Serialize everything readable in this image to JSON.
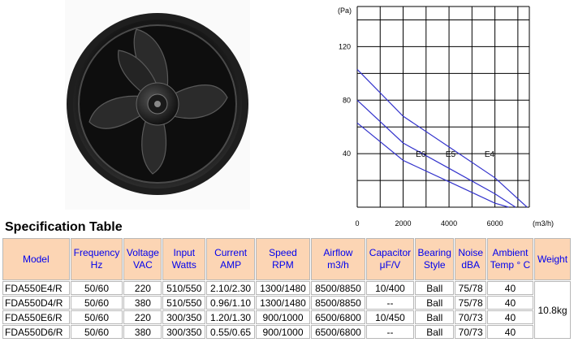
{
  "fan_image": {
    "alt_icon": "axial-fan-icon"
  },
  "fan_curve": {
    "y_unit": "(Pa)",
    "x_unit": "(m3/h)",
    "y_ticks": [
      {
        "label": "120",
        "value": 120
      },
      {
        "label": "80",
        "value": 80
      },
      {
        "label": "40",
        "value": 40
      }
    ],
    "x_ticks": [
      {
        "label": "0",
        "value": 0
      },
      {
        "label": "2000",
        "value": 2000
      },
      {
        "label": "4000",
        "value": 4000
      },
      {
        "label": "6000",
        "value": 6000
      }
    ],
    "xlim": [
      0,
      7500
    ],
    "ylim": [
      0,
      150
    ],
    "curves": [
      {
        "label": "E6",
        "points": [
          [
            0,
            63
          ],
          [
            2000,
            35
          ],
          [
            4000,
            19
          ],
          [
            6000,
            3
          ],
          [
            6600,
            0
          ]
        ]
      },
      {
        "label": "E5",
        "points": [
          [
            0,
            80
          ],
          [
            2000,
            48
          ],
          [
            4000,
            29
          ],
          [
            6000,
            10
          ],
          [
            6900,
            0
          ]
        ]
      },
      {
        "label": "E4",
        "points": [
          [
            0,
            103
          ],
          [
            2000,
            68
          ],
          [
            4000,
            45
          ],
          [
            6000,
            22
          ],
          [
            7400,
            0
          ]
        ]
      }
    ],
    "curve_labels": [
      {
        "text": "E6",
        "x": 2550,
        "y": 40
      },
      {
        "text": "E5",
        "x": 3850,
        "y": 40
      },
      {
        "text": "E4",
        "x": 5550,
        "y": 40
      }
    ],
    "line_color": "#3333cc",
    "grid": true
  },
  "spec": {
    "title": "Specification Table",
    "headers": [
      [
        "Model"
      ],
      [
        "Frequency",
        "Hz"
      ],
      [
        "Voltage",
        "VAC"
      ],
      [
        "Input",
        "Watts"
      ],
      [
        "Current",
        "AMP"
      ],
      [
        "Speed",
        "RPM"
      ],
      [
        "Airflow",
        "m3/h"
      ],
      [
        "Capacitor",
        "μF/V"
      ],
      [
        "Bearing",
        "Style"
      ],
      [
        "Noise",
        "dBA"
      ],
      [
        "Ambient",
        "Temp ° C"
      ],
      [
        "Weight"
      ]
    ],
    "rows": [
      [
        "FDA550E4/R",
        "50/60",
        "220",
        "510/550",
        "2.10/2.30",
        "1300/1480",
        "8500/8850",
        "10/400",
        "Ball",
        "75/78",
        "40"
      ],
      [
        "FDA550D4/R",
        "50/60",
        "380",
        "510/550",
        "0.96/1.10",
        "1300/1480",
        "8500/8850",
        "--",
        "Ball",
        "75/78",
        "40"
      ],
      [
        "FDA550E6/R",
        "50/60",
        "220",
        "300/350",
        "1.20/1.30",
        "900/1000",
        "6500/6800",
        "10/450",
        "Ball",
        "70/73",
        "40"
      ],
      [
        "FDA550D6/R",
        "50/60",
        "380",
        "300/350",
        "0.55/0.65",
        "900/1000",
        "6500/6800",
        "--",
        "Ball",
        "70/73",
        "40"
      ]
    ],
    "weight": "10.8kg"
  }
}
